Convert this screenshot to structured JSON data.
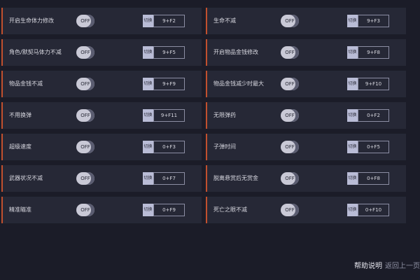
{
  "columns": [
    {
      "rows": [
        {
          "label": "开启生命体力修改",
          "toggle": "OFF",
          "switch": "切换",
          "hotkey": "9+F2"
        },
        {
          "label": "角色/默契马体力不减",
          "toggle": "OFF",
          "switch": "切换",
          "hotkey": "9+F5"
        },
        {
          "label": "物品金钱不减",
          "toggle": "OFF",
          "switch": "切换",
          "hotkey": "9+F9"
        },
        {
          "label": "不用换弹",
          "toggle": "OFF",
          "switch": "切换",
          "hotkey": "9+F11"
        },
        {
          "label": "超级速度",
          "toggle": "OFF",
          "switch": "切换",
          "hotkey": "0+F3"
        },
        {
          "label": "武器状况不减",
          "toggle": "OFF",
          "switch": "切换",
          "hotkey": "0+F7"
        },
        {
          "label": "精准瞄准",
          "toggle": "OFF",
          "switch": "切换",
          "hotkey": "0+F9"
        }
      ]
    },
    {
      "rows": [
        {
          "label": "生命不减",
          "toggle": "OFF",
          "switch": "切换",
          "hotkey": "9+F3"
        },
        {
          "label": "开启物品金钱修改",
          "toggle": "OFF",
          "switch": "切换",
          "hotkey": "9+F8"
        },
        {
          "label": "物品金钱减少时最大",
          "toggle": "OFF",
          "switch": "切换",
          "hotkey": "9+F10"
        },
        {
          "label": "无限弹药",
          "toggle": "OFF",
          "switch": "切换",
          "hotkey": "0+F2"
        },
        {
          "label": "子弹时间",
          "toggle": "OFF",
          "switch": "切换",
          "hotkey": "0+F5"
        },
        {
          "label": "脱离悬赏后无赏金",
          "toggle": "OFF",
          "switch": "切换",
          "hotkey": "0+F8"
        },
        {
          "label": "死亡之眼不减",
          "toggle": "OFF",
          "switch": "切换",
          "hotkey": "0+F10"
        }
      ]
    }
  ],
  "footer": {
    "help": "帮助说明",
    "back": "返回上一页"
  }
}
